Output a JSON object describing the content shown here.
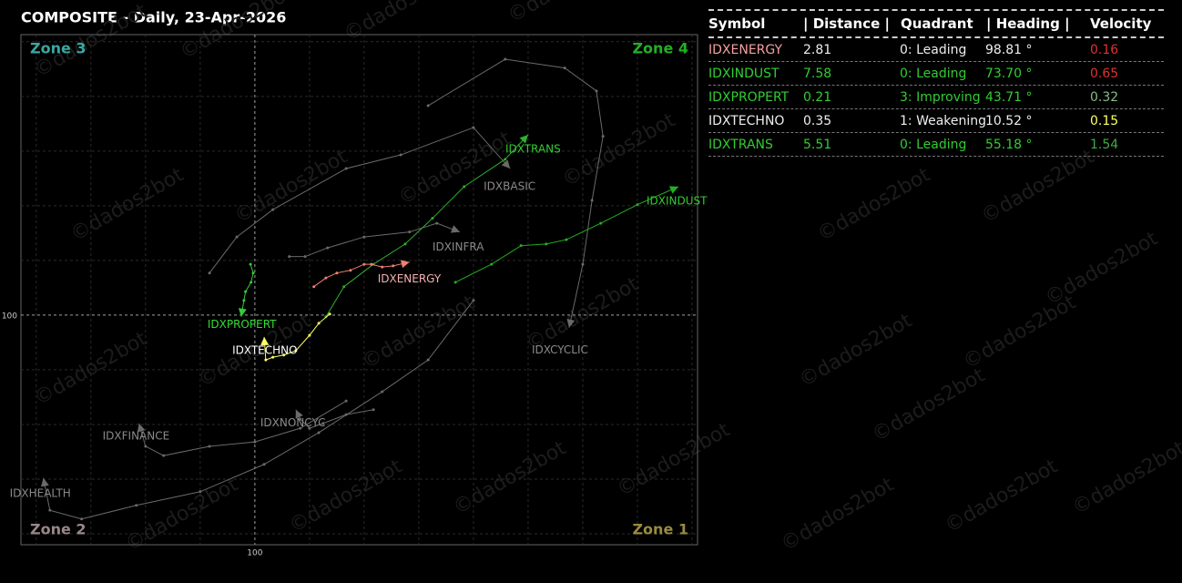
{
  "chart_data": {
    "type": "line",
    "title": "COMPOSITE - Daily, 23-Apr-2026",
    "xlim": [
      95.72,
      108.1
    ],
    "ylim": [
      95.8,
      105.13
    ],
    "xticks": [
      100
    ],
    "yticks": [
      100
    ],
    "grid": true,
    "zones": [
      {
        "label": "Zone 3",
        "color": "#3aa8a0"
      },
      {
        "label": "Zone 4",
        "color": "#22b022"
      },
      {
        "label": "Zone 2",
        "color": "#9a8888"
      },
      {
        "label": "Zone 1",
        "color": "#9a8a40"
      }
    ],
    "watermark": "©dados2bot",
    "series": [
      {
        "name": "IDXENERGY",
        "color": "#f08070",
        "label_color": "#f4b0b0",
        "x": [
          101.08,
          101.3,
          101.5,
          101.75,
          102.0,
          102.13,
          102.33,
          102.53,
          102.83
        ],
        "y": [
          100.52,
          100.68,
          100.77,
          100.82,
          100.93,
          100.93,
          100.88,
          100.9,
          100.97
        ]
      },
      {
        "name": "IDXINDUST",
        "color": "#22b022",
        "label_color": "#33cc33",
        "x": [
          103.67,
          104.33,
          104.87,
          105.33,
          105.7,
          106.33,
          107.0,
          107.75
        ],
        "y": [
          100.6,
          100.93,
          101.27,
          101.3,
          101.38,
          101.68,
          102.02,
          102.35
        ]
      },
      {
        "name": "IDXPROPERT",
        "color": "#33cc33",
        "label_color": "#33dd33",
        "x": [
          99.92,
          99.97,
          99.93,
          99.83,
          99.8,
          99.75
        ],
        "y": [
          100.93,
          100.77,
          100.6,
          100.43,
          100.27,
          99.97
        ]
      },
      {
        "name": "IDXTECHNO",
        "color": "#ffff66",
        "label_color": "#ffffff",
        "x": [
          101.37,
          101.17,
          101.0,
          100.75,
          100.53,
          100.33,
          100.2,
          100.17
        ],
        "y": [
          100.02,
          99.85,
          99.63,
          99.35,
          99.27,
          99.23,
          99.18,
          99.6
        ]
      },
      {
        "name": "IDXTRANS",
        "color": "#2fae2f",
        "label_color": "#33cc33",
        "x": [
          101.3,
          101.63,
          102.17,
          102.75,
          103.25,
          103.83,
          104.58,
          105.0
        ],
        "y": [
          99.97,
          100.52,
          100.93,
          101.3,
          101.77,
          102.35,
          102.85,
          103.3
        ]
      },
      {
        "name": "IDXBASIC",
        "color": "#6a6a6a",
        "label_color": "#8a8a8a",
        "x": [
          99.17,
          99.67,
          100.33,
          101.67,
          102.67,
          104.0,
          104.67
        ],
        "y": [
          100.77,
          101.43,
          101.93,
          102.68,
          102.93,
          103.43,
          102.68
        ]
      },
      {
        "name": "IDXINFRA",
        "color": "#6a6a6a",
        "label_color": "#8a8a8a",
        "x": [
          100.63,
          100.92,
          101.33,
          102.0,
          102.83,
          103.33,
          103.75
        ],
        "y": [
          101.07,
          101.07,
          101.23,
          101.43,
          101.52,
          101.68,
          101.52
        ]
      },
      {
        "name": "IDXCYCLIC",
        "color": "#6a6a6a",
        "label_color": "#8a8a8a",
        "x": [
          103.17,
          104.58,
          105.67,
          106.25,
          106.37,
          106.17,
          106.0,
          105.75
        ],
        "y": [
          103.83,
          104.68,
          104.52,
          104.1,
          103.27,
          102.1,
          100.93,
          99.77
        ]
      },
      {
        "name": "IDXHEALTH",
        "color": "#6a6a6a",
        "label_color": "#8a8a8a",
        "x": [
          104.0,
          103.17,
          102.33,
          101.17,
          100.17,
          99.0,
          97.83,
          96.83,
          96.25,
          96.13
        ],
        "y": [
          100.27,
          99.18,
          98.6,
          97.85,
          97.27,
          96.77,
          96.52,
          96.27,
          96.43,
          97.02
        ]
      },
      {
        "name": "IDXFINANCE",
        "color": "#6a6a6a",
        "label_color": "#8a8a8a",
        "x": [
          101.67,
          100.83,
          100.0,
          99.17,
          98.33,
          98.0,
          97.88
        ],
        "y": [
          98.43,
          97.93,
          97.68,
          97.6,
          97.43,
          97.6,
          98.02
        ]
      },
      {
        "name": "IDXNONCYC",
        "color": "#6a6a6a",
        "label_color": "#8a8a8a",
        "x": [
          102.17,
          101.67,
          101.25,
          101.0,
          100.83,
          100.75
        ],
        "y": [
          98.27,
          98.18,
          98.02,
          97.93,
          98.1,
          98.27
        ]
      }
    ]
  },
  "table": {
    "columns": [
      "Symbol",
      "| Distance |",
      "Quadrant",
      "| Heading |",
      "Velocity"
    ],
    "rows": [
      [
        "IDXENERGY",
        "2.81",
        "0: Leading",
        "98.81 °",
        "0.16"
      ],
      [
        "IDXINDUST",
        "7.58",
        "0: Leading",
        "73.70 °",
        "0.65"
      ],
      [
        "IDXPROPERT",
        "0.21",
        "3: Improving",
        "43.71 °",
        "0.32"
      ],
      [
        "IDXTECHNO",
        "0.35",
        "1: Weakening",
        "10.52 °",
        "0.15"
      ],
      [
        "IDXTRANS",
        "5.51",
        "0: Leading",
        "55.18 °",
        "1.54"
      ]
    ],
    "colors": [
      [
        "#f4a0a0",
        "#eeeeee",
        "#eeeeee",
        "#eeeeee",
        "#e03030"
      ],
      [
        "#33cc33",
        "#33cc33",
        "#33cc33",
        "#33cc33",
        "#e03030"
      ],
      [
        "#33cc33",
        "#33cc33",
        "#33cc33",
        "#33cc33",
        "#88bb88"
      ],
      [
        "#eeeeee",
        "#eeeeee",
        "#eeeeee",
        "#eeeeee",
        "#ffff66"
      ],
      [
        "#33cc33",
        "#33cc33",
        "#33cc33",
        "#33cc33",
        "#44aa44"
      ]
    ]
  }
}
